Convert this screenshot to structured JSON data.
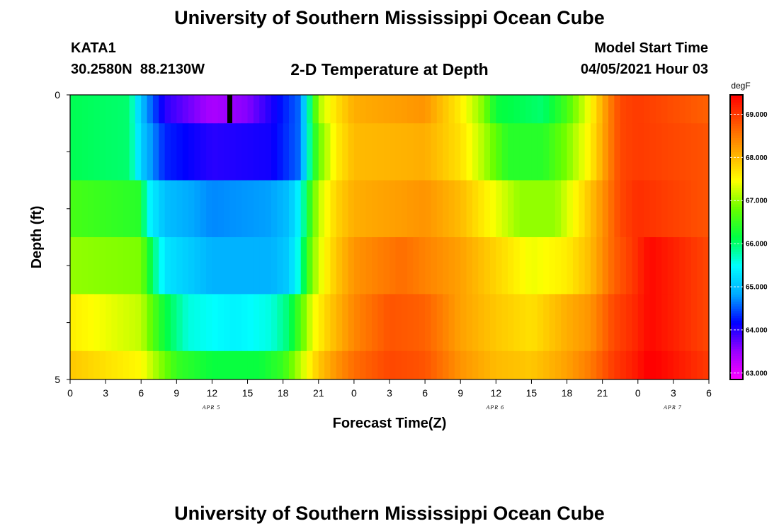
{
  "header": {
    "title": "University of Southern Mississippi Ocean Cube",
    "station": "KATA1",
    "coords": "30.2580N  88.2130W",
    "plot_title": "2-D Temperature at Depth",
    "model_label": "Model Start Time",
    "model_time": "04/05/2021 Hour 03"
  },
  "footer": {
    "title": "University of Southern Mississippi Ocean Cube"
  },
  "chart_data": {
    "type": "heatmap",
    "xlabel": "Forecast Time(Z)",
    "ylabel": "Depth (ft)",
    "y_range": [
      0,
      5
    ],
    "y_ticks": [
      0,
      5
    ],
    "x_range_hours": [
      0,
      54
    ],
    "x_tick_labels": [
      "0",
      "3",
      "6",
      "9",
      "12",
      "15",
      "18",
      "21",
      "0",
      "3",
      "6",
      "9",
      "12",
      "15",
      "18",
      "21",
      "0",
      "3",
      "6"
    ],
    "date_labels": [
      {
        "label": "APR 5",
        "at_hour": 12
      },
      {
        "label": "APR 6",
        "at_hour": 36
      },
      {
        "label": "APR 7",
        "at_hour": 51
      }
    ],
    "marker_hour": 13.5,
    "colorbar": {
      "label": "degF",
      "min": 62.85,
      "max": 69.45,
      "ticks": [
        "63.000",
        "64.000",
        "65.000",
        "66.000",
        "67.000",
        "68.000",
        "69.000"
      ],
      "colors": [
        "#ff00ff",
        "#9a00ff",
        "#0000ff",
        "#00aaff",
        "#00ffff",
        "#00ff44",
        "#66ff00",
        "#ffff00",
        "#ffaa00",
        "#ff5500",
        "#ff0000"
      ]
    },
    "depth_rows": [
      {
        "depth": "0.0-0.5",
        "knots": [
          [
            0,
            66.1
          ],
          [
            5,
            66.0
          ],
          [
            6,
            65.0
          ],
          [
            8,
            64.0
          ],
          [
            12,
            63.4
          ],
          [
            15,
            63.6
          ],
          [
            19.5,
            64.6
          ],
          [
            20,
            65.5
          ],
          [
            21,
            67.1
          ],
          [
            22.5,
            67.7
          ],
          [
            24,
            68.1
          ],
          [
            30,
            68.3
          ],
          [
            33,
            67.6
          ],
          [
            35,
            66.9
          ],
          [
            36,
            66.2
          ],
          [
            40,
            66.0
          ],
          [
            42,
            66.6
          ],
          [
            44,
            67.5
          ],
          [
            45.5,
            68.4
          ],
          [
            46.5,
            68.9
          ],
          [
            48,
            69.0
          ],
          [
            54,
            68.7
          ]
        ]
      },
      {
        "depth": "0.5-1.5",
        "knots": [
          [
            0,
            66.1
          ],
          [
            5,
            66.0
          ],
          [
            6,
            65.1
          ],
          [
            8,
            64.3
          ],
          [
            12,
            64.0
          ],
          [
            17,
            64.1
          ],
          [
            19.5,
            64.6
          ],
          [
            20,
            65.5
          ],
          [
            21,
            66.8
          ],
          [
            22.5,
            67.6
          ],
          [
            24,
            68.0
          ],
          [
            30,
            68.1
          ],
          [
            33,
            67.7
          ],
          [
            35,
            67.1
          ],
          [
            37,
            66.4
          ],
          [
            40,
            66.4
          ],
          [
            42,
            66.9
          ],
          [
            44,
            67.6
          ],
          [
            45.5,
            68.4
          ],
          [
            46.5,
            68.9
          ],
          [
            48,
            69.0
          ],
          [
            54,
            68.8
          ]
        ]
      },
      {
        "depth": "1.5-2.5",
        "knots": [
          [
            0,
            66.6
          ],
          [
            6,
            66.4
          ],
          [
            6.5,
            65.5
          ],
          [
            8,
            65.0
          ],
          [
            12,
            64.7
          ],
          [
            17,
            64.8
          ],
          [
            18.5,
            65.0
          ],
          [
            19.5,
            65.5
          ],
          [
            20,
            66.2
          ],
          [
            21,
            67.2
          ],
          [
            22.5,
            67.8
          ],
          [
            24,
            68.1
          ],
          [
            30,
            68.3
          ],
          [
            33,
            68.0
          ],
          [
            36,
            67.4
          ],
          [
            38,
            67.0
          ],
          [
            41,
            67.0
          ],
          [
            43,
            67.6
          ],
          [
            45,
            68.3
          ],
          [
            46.5,
            68.9
          ],
          [
            48,
            69.1
          ],
          [
            54,
            68.8
          ]
        ]
      },
      {
        "depth": "2.5-3.5",
        "knots": [
          [
            0,
            67.0
          ],
          [
            6,
            66.9
          ],
          [
            7,
            66.0
          ],
          [
            8,
            65.3
          ],
          [
            12,
            64.9
          ],
          [
            17,
            64.9
          ],
          [
            18.5,
            65.1
          ],
          [
            19.5,
            65.7
          ],
          [
            20,
            66.5
          ],
          [
            21,
            67.3
          ],
          [
            22.5,
            67.9
          ],
          [
            24,
            68.3
          ],
          [
            28,
            68.6
          ],
          [
            33,
            68.2
          ],
          [
            36,
            67.8
          ],
          [
            39,
            67.4
          ],
          [
            42,
            67.6
          ],
          [
            44,
            68.0
          ],
          [
            46,
            68.7
          ],
          [
            47.5,
            69.0
          ],
          [
            49,
            69.4
          ],
          [
            54,
            68.9
          ]
        ]
      },
      {
        "depth": "3.5-4.5",
        "knots": [
          [
            0,
            67.6
          ],
          [
            6,
            67.2
          ],
          [
            8,
            66.2
          ],
          [
            10,
            65.6
          ],
          [
            14,
            65.4
          ],
          [
            17,
            65.6
          ],
          [
            18.5,
            66.0
          ],
          [
            19.5,
            66.7
          ],
          [
            20.5,
            67.4
          ],
          [
            22,
            67.9
          ],
          [
            24,
            68.4
          ],
          [
            27,
            68.8
          ],
          [
            30,
            68.7
          ],
          [
            33,
            68.2
          ],
          [
            36,
            67.9
          ],
          [
            39,
            67.7
          ],
          [
            42,
            68.1
          ],
          [
            44,
            68.3
          ],
          [
            46,
            68.9
          ],
          [
            47.5,
            69.1
          ],
          [
            49,
            69.4
          ],
          [
            54,
            68.9
          ]
        ]
      },
      {
        "depth": "4.5-5.0",
        "knots": [
          [
            0,
            67.9
          ],
          [
            6,
            67.5
          ],
          [
            7.5,
            67.0
          ],
          [
            9,
            66.5
          ],
          [
            12,
            66.2
          ],
          [
            16,
            66.2
          ],
          [
            18,
            66.5
          ],
          [
            19.5,
            67.2
          ],
          [
            21,
            67.9
          ],
          [
            22.5,
            68.3
          ],
          [
            24,
            68.6
          ],
          [
            27,
            68.9
          ],
          [
            30,
            68.8
          ],
          [
            33,
            68.3
          ],
          [
            36,
            68.0
          ],
          [
            39,
            67.9
          ],
          [
            42,
            68.2
          ],
          [
            44,
            68.5
          ],
          [
            46,
            69.0
          ],
          [
            47.5,
            69.2
          ],
          [
            49,
            69.5
          ],
          [
            54,
            69.0
          ]
        ]
      }
    ]
  }
}
